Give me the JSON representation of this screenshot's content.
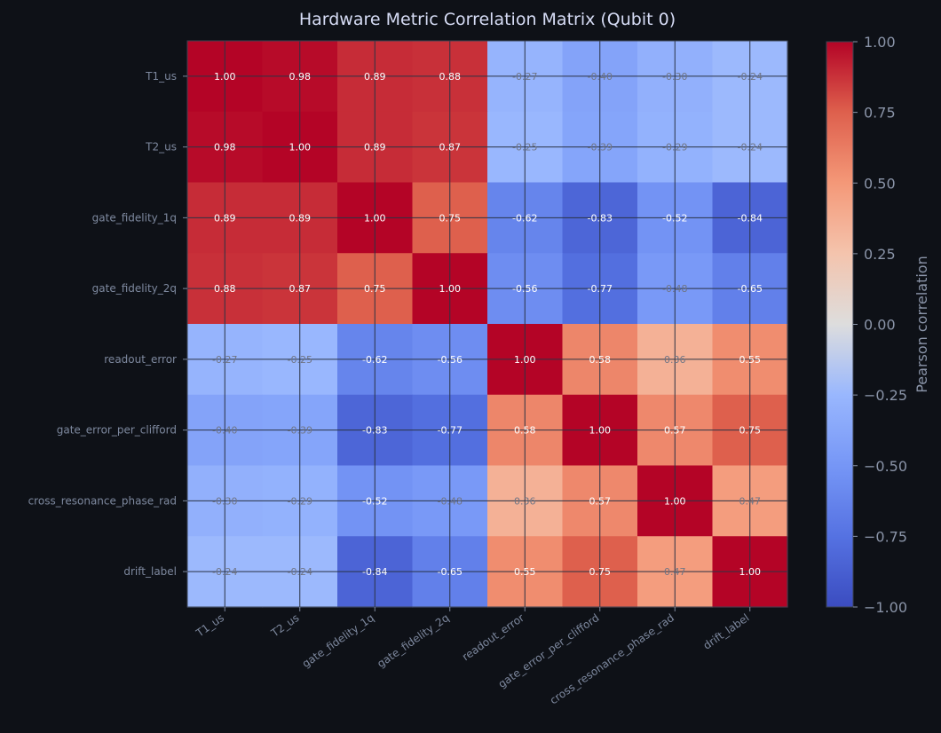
{
  "chart_data": {
    "type": "heatmap",
    "title": "Hardware Metric Correlation Matrix (Qubit 0)",
    "row_labels": [
      "T1_us",
      "T2_us",
      "gate_fidelity_1q",
      "gate_fidelity_2q",
      "readout_error",
      "gate_error_per_clifford",
      "cross_resonance_phase_rad",
      "drift_label"
    ],
    "col_labels": [
      "T1_us",
      "T2_us",
      "gate_fidelity_1q",
      "gate_fidelity_2q",
      "readout_error",
      "gate_error_per_clifford",
      "cross_resonance_phase_rad",
      "drift_label"
    ],
    "values": [
      [
        1.0,
        0.98,
        0.89,
        0.88,
        -0.27,
        -0.4,
        -0.3,
        -0.24
      ],
      [
        0.98,
        1.0,
        0.89,
        0.87,
        -0.25,
        -0.39,
        -0.29,
        -0.24
      ],
      [
        0.89,
        0.89,
        1.0,
        0.75,
        -0.62,
        -0.83,
        -0.52,
        -0.84
      ],
      [
        0.88,
        0.87,
        0.75,
        1.0,
        -0.56,
        -0.77,
        -0.48,
        -0.65
      ],
      [
        -0.27,
        -0.25,
        -0.62,
        -0.56,
        1.0,
        0.58,
        0.36,
        0.55
      ],
      [
        -0.4,
        -0.39,
        -0.83,
        -0.77,
        0.58,
        1.0,
        0.57,
        0.75
      ],
      [
        -0.3,
        -0.29,
        -0.52,
        -0.48,
        0.36,
        0.57,
        1.0,
        0.47
      ],
      [
        -0.24,
        -0.24,
        -0.84,
        -0.65,
        0.55,
        0.75,
        0.47,
        1.0
      ]
    ],
    "value_range": [
      -1.0,
      1.0
    ],
    "colormap": "coolwarm",
    "grid": true,
    "colorbar": {
      "label": "Pearson correlation",
      "ticks": [
        1.0,
        0.75,
        0.5,
        0.25,
        0.0,
        -0.25,
        -0.5,
        -0.75,
        -1.0
      ],
      "tick_labels": [
        "1.00",
        "0.75",
        "0.50",
        "0.25",
        "0.00",
        "−0.25",
        "−0.50",
        "−0.75",
        "−1.00"
      ],
      "placement": "right"
    }
  },
  "colors": {
    "background": "#0e1117",
    "grid_line": "#2a3344",
    "axis_line": "#3b4252",
    "title": "#d6dcf5",
    "tick_label": "#7d889e",
    "text_on_strong": "#ffffff",
    "text_on_weak": "#6f7585"
  }
}
